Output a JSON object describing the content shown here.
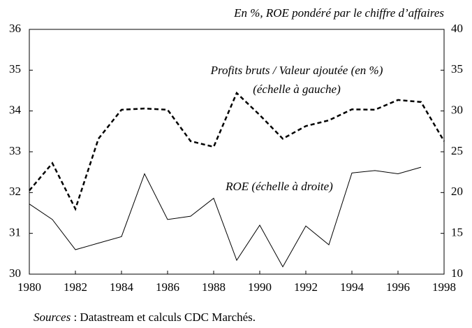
{
  "chart_data": {
    "type": "line",
    "subtitle": "En %, ROE pondéré par le chiffre d’affaires",
    "x": [
      1980,
      1981,
      1982,
      1983,
      1984,
      1985,
      1986,
      1987,
      1988,
      1989,
      1990,
      1991,
      1992,
      1993,
      1994,
      1995,
      1996,
      1997,
      1998
    ],
    "xlim": [
      1980,
      1998
    ],
    "xticks": [
      1980,
      1982,
      1984,
      1986,
      1988,
      1990,
      1992,
      1994,
      1996,
      1998
    ],
    "ylim": [
      30,
      36
    ],
    "yticks": [
      30,
      31,
      32,
      33,
      34,
      35,
      36
    ],
    "y2lim": [
      10,
      40
    ],
    "y2ticks": [
      10,
      15,
      20,
      25,
      30,
      35,
      40
    ],
    "series": [
      {
        "name": "Profits bruts / Valeur ajoutée (en %)",
        "scale_note": "(échelle à gauche)",
        "color": "#000000",
        "dashed": true,
        "axis": "y",
        "values": [
          32.05,
          32.72,
          31.6,
          33.32,
          34.03,
          34.06,
          34.03,
          33.26,
          33.12,
          34.44,
          33.9,
          33.32,
          33.63,
          33.77,
          34.04,
          34.03,
          34.27,
          34.22,
          33.26
        ]
      },
      {
        "name": "ROE (échelle à droite)",
        "color": "#000000",
        "dashed": false,
        "axis": "y2",
        "values": [
          18.6,
          16.7,
          13.0,
          13.8,
          14.6,
          22.3,
          16.7,
          17.1,
          19.3,
          11.7,
          16.0,
          10.9,
          15.9,
          13.6,
          22.4,
          22.7,
          22.3,
          23.1,
          null
        ]
      }
    ],
    "source_label": "Sources",
    "source_text": " : Datastream et calculs CDC Marchés."
  }
}
